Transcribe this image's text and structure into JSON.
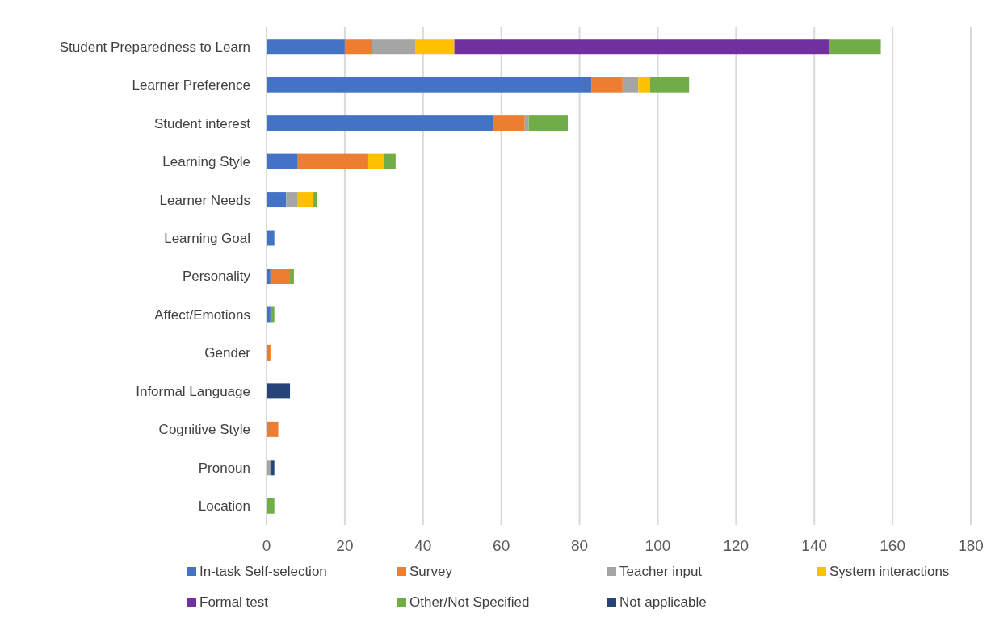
{
  "chart_data": {
    "type": "bar",
    "orientation": "horizontal",
    "stacked": true,
    "categories": [
      "Student Preparedness to Learn",
      "Learner Preference",
      "Student interest",
      "Learning Style",
      "Learner Needs",
      "Learning Goal",
      "Personality",
      "Affect/Emotions",
      "Gender",
      "Informal Language",
      "Cognitive Style",
      "Pronoun",
      "Location"
    ],
    "series": [
      {
        "name": "In-task Self-selection",
        "color": "#4472c4",
        "values": [
          20,
          83,
          58,
          8,
          5,
          2,
          1,
          1,
          0,
          0,
          0,
          0,
          0
        ]
      },
      {
        "name": "Survey",
        "color": "#ed7d31",
        "values": [
          7,
          8,
          8,
          18,
          0,
          0,
          5,
          0,
          1,
          0,
          3,
          0,
          0
        ]
      },
      {
        "name": "Teacher input",
        "color": "#a5a5a5",
        "values": [
          11,
          4,
          1,
          0,
          3,
          0,
          0,
          0,
          0,
          0,
          0,
          1,
          0
        ]
      },
      {
        "name": "System interactions",
        "color": "#ffc000",
        "values": [
          10,
          3,
          0,
          4,
          4,
          0,
          0,
          0,
          0,
          0,
          0,
          0,
          0
        ]
      },
      {
        "name": "Formal test",
        "color": "#7030a0",
        "values": [
          96,
          0,
          0,
          0,
          0,
          0,
          0,
          0,
          0,
          0,
          0,
          0,
          0
        ]
      },
      {
        "name": "Other/Not Specified",
        "color": "#70ad47",
        "values": [
          13,
          10,
          10,
          3,
          1,
          0,
          1,
          1,
          0,
          0,
          0,
          0,
          2
        ]
      },
      {
        "name": "Not applicable",
        "color": "#264478",
        "values": [
          0,
          0,
          0,
          0,
          0,
          0,
          0,
          0,
          0,
          6,
          0,
          1,
          0
        ]
      }
    ],
    "xlim": [
      0,
      180
    ],
    "xticks": [
      0,
      20,
      40,
      60,
      80,
      100,
      120,
      140,
      160,
      180
    ],
    "grid": "x",
    "legend": "bottom"
  }
}
